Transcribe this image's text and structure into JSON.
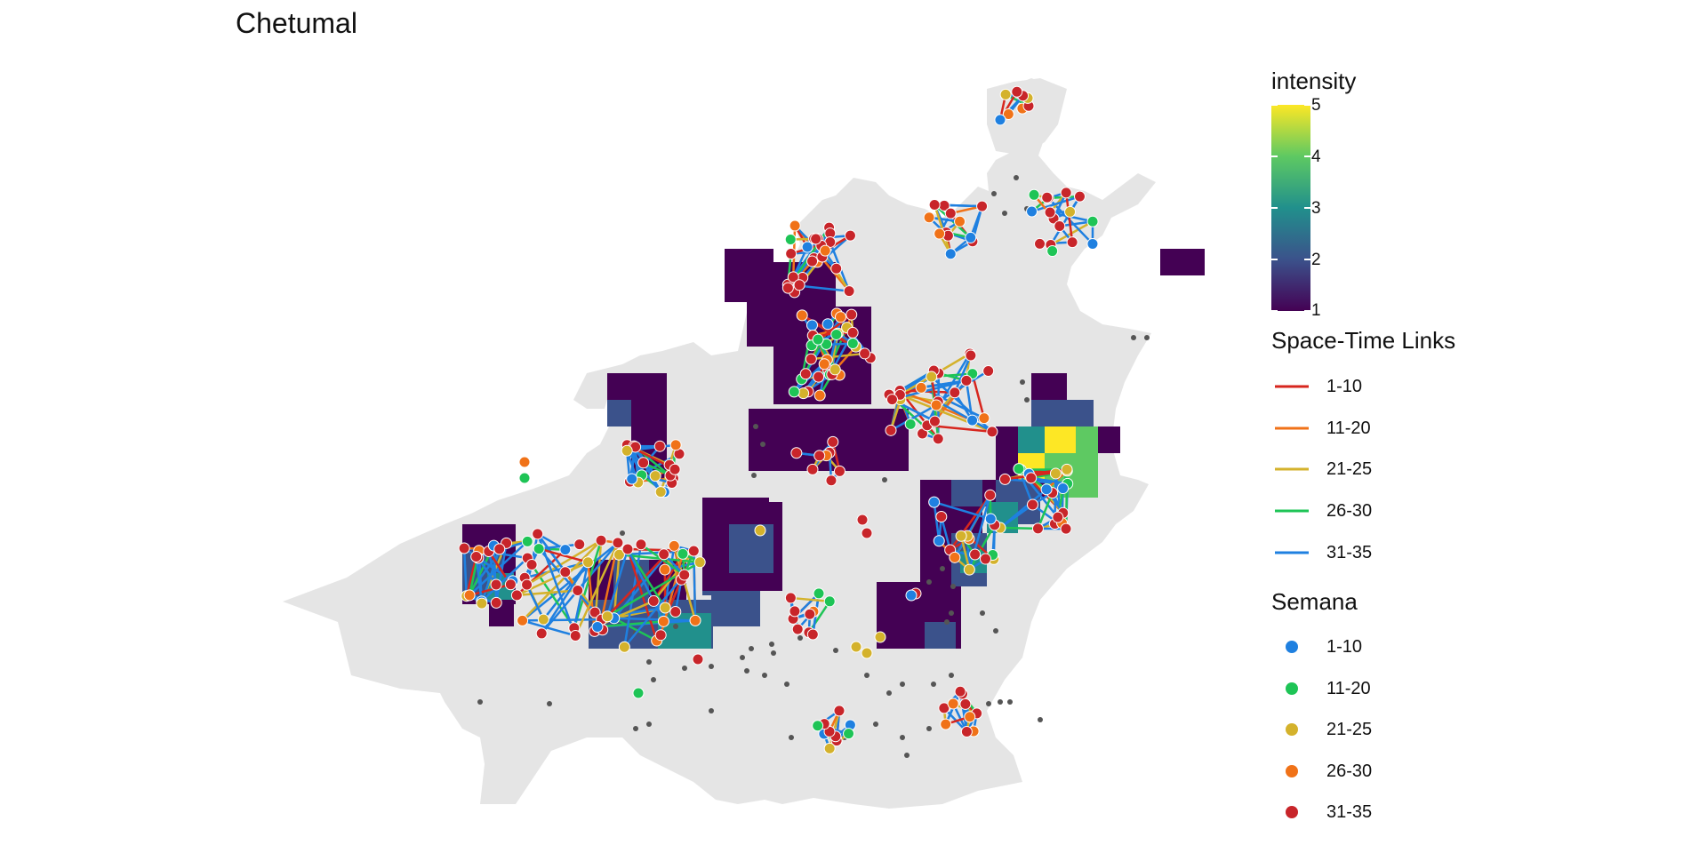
{
  "title": "Chetumal",
  "colors": {
    "land": "#e5e5e5",
    "background_point": "#555555",
    "viridis": [
      "#440154",
      "#3b528b",
      "#21908c",
      "#5ec962",
      "#fde725"
    ]
  },
  "legends": {
    "intensity": {
      "title": "intensity",
      "ticks": [
        "1",
        "2",
        "3",
        "4",
        "5"
      ]
    },
    "links": {
      "title": "Space-Time Links",
      "items": [
        {
          "label": "1-10",
          "color": "#d7261e"
        },
        {
          "label": "11-20",
          "color": "#f07218"
        },
        {
          "label": "21-25",
          "color": "#d4b22c"
        },
        {
          "label": "26-30",
          "color": "#1ec456"
        },
        {
          "label": "31-35",
          "color": "#1f80e0"
        }
      ]
    },
    "semana": {
      "title": "Semana",
      "items": [
        {
          "label": "1-10",
          "color": "#1f80e0"
        },
        {
          "label": "11-20",
          "color": "#1ec456"
        },
        {
          "label": "21-25",
          "color": "#d4b22c"
        },
        {
          "label": "26-30",
          "color": "#f07218"
        },
        {
          "label": "31-35",
          "color": "#c8252a"
        }
      ]
    }
  }
}
